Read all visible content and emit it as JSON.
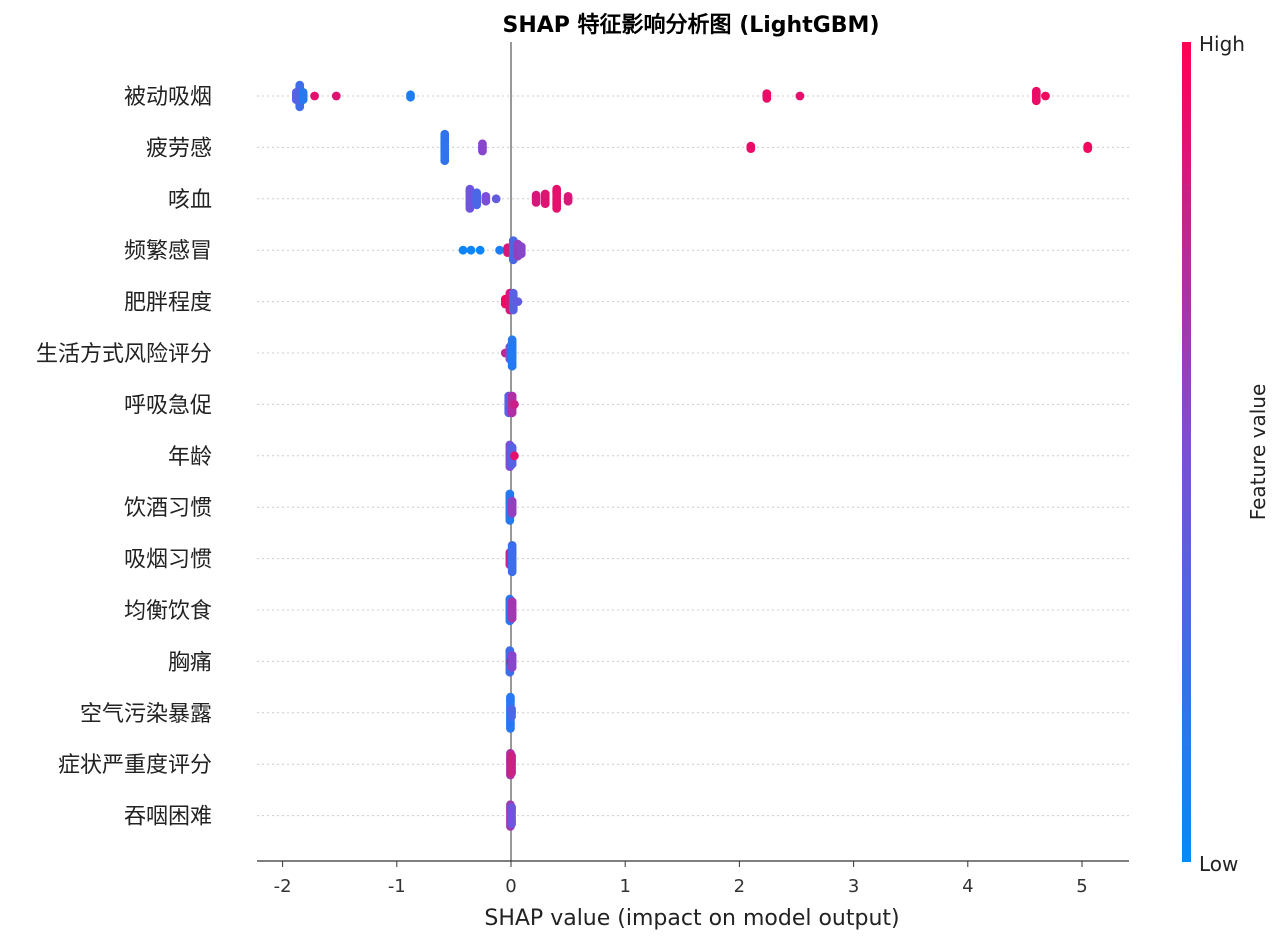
{
  "chart_data": {
    "type": "scatter",
    "title": "SHAP 特征影响分析图 (LightGBM)",
    "xlabel": "SHAP value (impact on model output)",
    "xlim": [
      -2.2,
      5.4
    ],
    "xticks": [
      -2,
      -1,
      0,
      1,
      2,
      3,
      4,
      5
    ],
    "colorbar": {
      "label": "Feature value",
      "high": "High",
      "low": "Low",
      "low_color": "#008bfb",
      "high_color": "#ff0052"
    },
    "grid": "horizontal dotted",
    "features": [
      {
        "name": "被动吸烟",
        "points": [
          {
            "x": -1.85,
            "c": 0.25,
            "n": 10
          },
          {
            "x": -1.88,
            "c": 0.35,
            "n": 4
          },
          {
            "x": -1.82,
            "c": 0.15,
            "n": 4
          },
          {
            "x": -1.72,
            "c": 0.9,
            "n": 1
          },
          {
            "x": -1.53,
            "c": 0.88,
            "n": 1
          },
          {
            "x": -0.88,
            "c": 0.12,
            "n": 2
          },
          {
            "x": 2.24,
            "c": 0.92,
            "n": 3
          },
          {
            "x": 2.53,
            "c": 0.9,
            "n": 1
          },
          {
            "x": 4.6,
            "c": 0.92,
            "n": 5
          },
          {
            "x": 4.68,
            "c": 0.95,
            "n": 1
          }
        ]
      },
      {
        "name": "疲劳感",
        "points": [
          {
            "x": -0.58,
            "c": 0.2,
            "n": 12
          },
          {
            "x": -0.25,
            "c": 0.55,
            "n": 4
          },
          {
            "x": 2.1,
            "c": 0.92,
            "n": 2
          },
          {
            "x": 5.05,
            "c": 0.95,
            "n": 2
          }
        ]
      },
      {
        "name": "咳血",
        "points": [
          {
            "x": -0.36,
            "c": 0.45,
            "n": 9
          },
          {
            "x": -0.3,
            "c": 0.3,
            "n": 6
          },
          {
            "x": -0.22,
            "c": 0.5,
            "n": 3
          },
          {
            "x": -0.13,
            "c": 0.4,
            "n": 1
          },
          {
            "x": 0.22,
            "c": 0.85,
            "n": 4
          },
          {
            "x": 0.3,
            "c": 0.88,
            "n": 5
          },
          {
            "x": 0.4,
            "c": 0.9,
            "n": 9
          },
          {
            "x": 0.5,
            "c": 0.85,
            "n": 3
          }
        ]
      },
      {
        "name": "频繁感冒",
        "points": [
          {
            "x": -0.42,
            "c": 0.05,
            "n": 1
          },
          {
            "x": -0.35,
            "c": 0.05,
            "n": 1
          },
          {
            "x": -0.27,
            "c": 0.05,
            "n": 1
          },
          {
            "x": -0.1,
            "c": 0.1,
            "n": 1
          },
          {
            "x": -0.03,
            "c": 0.85,
            "n": 3
          },
          {
            "x": 0.02,
            "c": 0.3,
            "n": 9
          },
          {
            "x": 0.06,
            "c": 0.6,
            "n": 6
          },
          {
            "x": 0.09,
            "c": 0.55,
            "n": 4
          }
        ]
      },
      {
        "name": "肥胖程度",
        "points": [
          {
            "x": -0.05,
            "c": 0.95,
            "n": 3
          },
          {
            "x": -0.01,
            "c": 0.85,
            "n": 8
          },
          {
            "x": 0.02,
            "c": 0.35,
            "n": 8
          },
          {
            "x": 0.06,
            "c": 0.4,
            "n": 1
          }
        ]
      },
      {
        "name": "生活方式风险评分",
        "points": [
          {
            "x": -0.05,
            "c": 0.75,
            "n": 1
          },
          {
            "x": -0.01,
            "c": 0.5,
            "n": 6
          },
          {
            "x": 0.01,
            "c": 0.15,
            "n": 12
          }
        ]
      },
      {
        "name": "呼吸急促",
        "points": [
          {
            "x": -0.02,
            "c": 0.35,
            "n": 8
          },
          {
            "x": 0.01,
            "c": 0.7,
            "n": 8
          },
          {
            "x": 0.03,
            "c": 0.8,
            "n": 1
          }
        ]
      },
      {
        "name": "年龄",
        "points": [
          {
            "x": -0.01,
            "c": 0.5,
            "n": 10
          },
          {
            "x": 0.01,
            "c": 0.35,
            "n": 8
          },
          {
            "x": 0.03,
            "c": 0.9,
            "n": 1
          }
        ]
      },
      {
        "name": "饮酒习惯",
        "points": [
          {
            "x": -0.01,
            "c": 0.15,
            "n": 12
          },
          {
            "x": 0.01,
            "c": 0.6,
            "n": 6
          }
        ]
      },
      {
        "name": "吸烟习惯",
        "points": [
          {
            "x": -0.01,
            "c": 0.8,
            "n": 6
          },
          {
            "x": 0.01,
            "c": 0.25,
            "n": 12
          }
        ]
      },
      {
        "name": "均衡饮食",
        "points": [
          {
            "x": -0.01,
            "c": 0.15,
            "n": 10
          },
          {
            "x": 0.01,
            "c": 0.65,
            "n": 8
          }
        ]
      },
      {
        "name": "胸痛",
        "points": [
          {
            "x": -0.01,
            "c": 0.25,
            "n": 10
          },
          {
            "x": 0.0,
            "c": 0.95,
            "n": 2
          },
          {
            "x": 0.01,
            "c": 0.55,
            "n": 6
          }
        ]
      },
      {
        "name": "空气污染暴露",
        "points": [
          {
            "x": -0.005,
            "c": 0.15,
            "n": 14
          },
          {
            "x": 0.005,
            "c": 0.3,
            "n": 4
          }
        ]
      },
      {
        "name": "症状严重度评分",
        "points": [
          {
            "x": -0.005,
            "c": 0.7,
            "n": 10
          },
          {
            "x": 0.005,
            "c": 0.8,
            "n": 8
          }
        ]
      },
      {
        "name": "吞咽困难",
        "points": [
          {
            "x": -0.005,
            "c": 0.65,
            "n": 10
          },
          {
            "x": 0.005,
            "c": 0.45,
            "n": 8
          }
        ]
      }
    ]
  }
}
